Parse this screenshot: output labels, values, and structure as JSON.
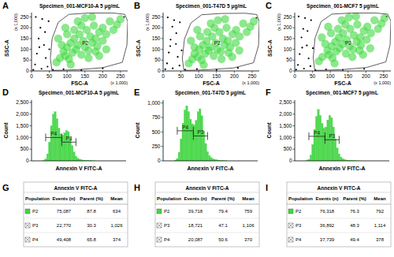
{
  "chart_data": [
    {
      "type": "scatter",
      "panel": "A",
      "title": "Specimen_001-MCF10-A 5 μg/mL",
      "xlabel": "FSC-A",
      "ylabel": "SSC-A",
      "x_unit": "(x 1,000)",
      "y_unit": "(x 1,000)",
      "xlim": [
        0,
        270
      ],
      "ylim": [
        0,
        270
      ],
      "xticks": [
        0,
        50,
        100,
        150,
        200,
        250
      ],
      "yticks": [
        0,
        50,
        100,
        150,
        200,
        250
      ],
      "grid": false,
      "series": [
        {
          "color": "#000000",
          "marker": "dot",
          "x": [
            5,
            10,
            15,
            20,
            25,
            30,
            35,
            40,
            45,
            12,
            28,
            38,
            50,
            60,
            90,
            140,
            200,
            260,
            48,
            22
          ],
          "values": [
            5,
            30,
            80,
            150,
            200,
            240,
            120,
            60,
            20,
            250,
            10,
            180,
            100,
            5,
            8,
            4,
            12,
            250,
            230,
            110
          ]
        },
        {
          "color": "#3fd83f",
          "marker": "circle",
          "x": [
            70,
            80,
            90,
            95,
            100,
            105,
            110,
            115,
            120,
            125,
            130,
            135,
            140,
            145,
            150,
            155,
            160,
            165,
            170,
            175,
            180,
            185,
            190,
            200,
            210,
            220,
            230,
            240,
            250,
            85,
            100,
            120,
            140,
            160,
            180,
            200,
            130,
            150,
            170,
            110,
            190,
            210,
            75,
            95
          ],
          "values": [
            40,
            60,
            90,
            70,
            110,
            55,
            130,
            85,
            150,
            100,
            120,
            170,
            75,
            140,
            110,
            190,
            95,
            160,
            130,
            210,
            150,
            115,
            180,
            200,
            170,
            230,
            190,
            215,
            240,
            120,
            170,
            190,
            210,
            60,
            90,
            140,
            230,
            245,
            250,
            30,
            70,
            100,
            150,
            200
          ]
        }
      ],
      "gate": {
        "name": "P2",
        "x": [
          57,
          53,
          58,
          75,
          105,
          160,
          230,
          262,
          270,
          268,
          255,
          200,
          130,
          80,
          62
        ],
        "y": [
          4,
          60,
          150,
          225,
          262,
          268,
          268,
          262,
          230,
          120,
          40,
          15,
          6,
          3,
          3
        ]
      }
    },
    {
      "type": "scatter",
      "panel": "B",
      "title": "Specimen_001-T47D 5 μg/mL",
      "xlabel": "FSC-A",
      "ylabel": "SSC-A",
      "x_unit": "(x 1,000)",
      "y_unit": "(x 1,000)",
      "xlim": [
        0,
        270
      ],
      "ylim": [
        0,
        270
      ],
      "xticks": [
        0,
        50,
        100,
        150,
        200,
        250
      ],
      "yticks": [
        0,
        50,
        100,
        150,
        200,
        250
      ],
      "grid": false,
      "series": [
        {
          "color": "#000000",
          "marker": "dot",
          "x": [
            6,
            11,
            16,
            21,
            26,
            31,
            36,
            41,
            46,
            13,
            27,
            37,
            52,
            62,
            95,
            150,
            210,
            262,
            47,
            20
          ],
          "values": [
            8,
            35,
            85,
            145,
            205,
            235,
            125,
            65,
            25,
            248,
            12,
            175,
            95,
            6,
            9,
            5,
            14,
            245,
            225,
            115
          ]
        },
        {
          "color": "#3fd83f",
          "marker": "circle",
          "x": [
            72,
            82,
            88,
            98,
            102,
            108,
            112,
            118,
            122,
            128,
            132,
            138,
            142,
            148,
            152,
            158,
            162,
            168,
            172,
            178,
            182,
            188,
            195,
            205,
            215,
            225,
            235,
            245,
            255,
            88,
            104,
            124,
            144,
            164,
            184,
            204,
            134,
            154,
            174,
            114,
            194,
            214,
            78,
            96
          ],
          "values": [
            35,
            55,
            80,
            65,
            100,
            50,
            120,
            80,
            140,
            95,
            110,
            160,
            70,
            130,
            100,
            180,
            90,
            150,
            120,
            200,
            140,
            110,
            170,
            190,
            160,
            220,
            180,
            205,
            230,
            110,
            160,
            180,
            200,
            55,
            85,
            130,
            220,
            235,
            240,
            28,
            65,
            95,
            140,
            190
          ]
        }
      ],
      "gate": {
        "name": "P2",
        "x": [
          58,
          54,
          60,
          78,
          108,
          162,
          232,
          263,
          270,
          268,
          254,
          198,
          128,
          82,
          63
        ],
        "y": [
          4,
          58,
          148,
          222,
          260,
          266,
          267,
          261,
          228,
          118,
          38,
          14,
          6,
          3,
          3
        ]
      }
    },
    {
      "type": "scatter",
      "panel": "C",
      "title": "Specimen_001-MCF7 5 μg/mL",
      "xlabel": "FSC-A",
      "ylabel": "SSC-A",
      "x_unit": "(x 1,000)",
      "y_unit": "(x 1,000)",
      "xlim": [
        0,
        270
      ],
      "ylim": [
        0,
        270
      ],
      "xticks": [
        0,
        50,
        100,
        150,
        200,
        250
      ],
      "yticks": [
        0,
        50,
        100,
        150,
        200,
        250
      ],
      "grid": false,
      "series": [
        {
          "color": "#000000",
          "marker": "dot",
          "x": [
            4,
            9,
            14,
            19,
            24,
            29,
            34,
            39,
            44,
            11,
            26,
            36,
            51,
            58,
            88,
            135,
            195,
            258,
            46,
            21
          ],
          "values": [
            6,
            28,
            78,
            155,
            195,
            245,
            118,
            58,
            22,
            252,
            11,
            185,
            105,
            4,
            7,
            5,
            10,
            252,
            235,
            108
          ]
        },
        {
          "color": "#3fd83f",
          "marker": "circle",
          "x": [
            68,
            78,
            92,
            96,
            104,
            106,
            114,
            116,
            124,
            126,
            134,
            136,
            144,
            146,
            154,
            156,
            164,
            166,
            174,
            176,
            184,
            186,
            194,
            204,
            214,
            224,
            234,
            244,
            252,
            86,
            102,
            122,
            142,
            162,
            182,
            202,
            132,
            152,
            172,
            112,
            192,
            212,
            76,
            94
          ],
          "values": [
            45,
            65,
            95,
            75,
            115,
            60,
            135,
            90,
            155,
            105,
            125,
            175,
            80,
            145,
            115,
            195,
            100,
            165,
            135,
            215,
            155,
            120,
            185,
            205,
            175,
            235,
            195,
            220,
            245,
            125,
            175,
            195,
            215,
            65,
            95,
            145,
            235,
            248,
            252,
            35,
            75,
            105,
            155,
            205
          ]
        }
      ],
      "gate": {
        "name": "P2",
        "x": [
          56,
          52,
          57,
          74,
          104,
          158,
          228,
          261,
          270,
          268,
          256,
          202,
          132,
          79,
          61
        ],
        "y": [
          4,
          62,
          152,
          228,
          263,
          268,
          268,
          263,
          232,
          122,
          42,
          16,
          6,
          3,
          3
        ]
      }
    },
    {
      "type": "histogram",
      "panel": "D",
      "title": "Specimen_001-MCF10-A 5 μg/mL",
      "xlabel": "Annexin V FITC-A",
      "ylabel": "Count",
      "log": "x",
      "tick_labels": "y",
      "color": "#4fd84f",
      "xlim": [
        10,
        1000000
      ],
      "ylim": [
        0,
        2600
      ],
      "yticks": [
        0,
        500,
        {
          "value": 1000,
          "label": "1,000"
        },
        {
          "value": 1500,
          "label": "1,500"
        },
        {
          "value": 2000,
          "label": "2,000"
        },
        {
          "value": 2500,
          "label": "2,500"
        }
      ],
      "bins": [
        40,
        50,
        63,
        79,
        100,
        126,
        158,
        200,
        251,
        316,
        398,
        501,
        631,
        794,
        1000,
        1259,
        1585,
        1995,
        2512,
        3162,
        3981,
        5012,
        6310,
        7943,
        10000,
        12589,
        15849,
        19953,
        25119
      ],
      "values": [
        20,
        80,
        300,
        800,
        1500,
        2000,
        2100,
        1800,
        1400,
        1150,
        1100,
        1200,
        1300,
        1250,
        1000,
        650,
        380,
        200,
        110,
        70,
        45,
        30,
        22,
        15,
        10,
        7,
        5,
        3
      ],
      "gates": [
        {
          "name": "P4",
          "range": [
            56,
            398
          ],
          "level": 1000
        },
        {
          "name": "P3",
          "range": [
            398,
            2239
          ],
          "level": 800
        }
      ]
    },
    {
      "type": "histogram",
      "panel": "E",
      "title": "Specimen_001-T47D 5 μg/mL",
      "xlabel": "Annexin V FITC-A",
      "ylabel": "Count",
      "log": "x",
      "tick_labels": "y",
      "color": "#4fd84f",
      "xlim": [
        10,
        1000000
      ],
      "ylim": [
        0,
        1050
      ],
      "yticks": [
        0,
        250,
        500,
        750,
        {
          "value": 1000,
          "label": "1,000"
        }
      ],
      "bins": [
        40,
        50,
        63,
        79,
        100,
        126,
        158,
        200,
        251,
        316,
        398,
        501,
        631,
        794,
        1000,
        1259,
        1585,
        1995,
        2512,
        3162,
        3981,
        5012,
        6310,
        7943,
        10000,
        12589,
        15849,
        19953,
        25119
      ],
      "values": [
        10,
        40,
        150,
        380,
        650,
        880,
        950,
        850,
        720,
        640,
        620,
        700,
        850,
        900,
        780,
        520,
        300,
        160,
        90,
        55,
        35,
        24,
        16,
        11,
        8,
        5,
        3,
        2
      ],
      "gates": [
        {
          "name": "P4",
          "range": [
            56,
            398
          ],
          "level": 520
        },
        {
          "name": "P3",
          "range": [
            398,
            2239
          ],
          "level": 430
        }
      ]
    },
    {
      "type": "histogram",
      "panel": "F",
      "title": "Specimen_001-MCF7 5 μg/mL",
      "xlabel": "Annexin V FITC-A",
      "ylabel": "Count",
      "log": "x",
      "tick_labels": "y",
      "color": "#4fd84f",
      "xlim": [
        10,
        1000000
      ],
      "ylim": [
        0,
        2600
      ],
      "yticks": [
        0,
        500,
        {
          "value": 1000,
          "label": "1,000"
        },
        {
          "value": 1500,
          "label": "1,500"
        },
        {
          "value": 2000,
          "label": "2,000"
        },
        {
          "value": 2500,
          "label": "2,500"
        }
      ],
      "bins": [
        40,
        50,
        63,
        79,
        100,
        126,
        158,
        200,
        251,
        316,
        398,
        501,
        631,
        794,
        1000,
        1259,
        1585,
        1995,
        2512,
        3162,
        3981,
        5012,
        6310,
        7943,
        10000,
        12589,
        15849,
        19953,
        25119
      ],
      "values": [
        15,
        60,
        250,
        700,
        1350,
        1900,
        2200,
        1950,
        1600,
        1400,
        1450,
        1750,
        1950,
        1850,
        1450,
        950,
        550,
        300,
        160,
        90,
        55,
        35,
        24,
        16,
        11,
        7,
        5,
        3
      ],
      "gates": [
        {
          "name": "P4",
          "range": [
            56,
            398
          ],
          "level": 1050
        },
        {
          "name": "P3",
          "range": [
            398,
            2239
          ],
          "level": 900
        }
      ]
    },
    {
      "type": "table",
      "panel": "G",
      "title": "Annexin V FITC-A",
      "columns": [
        "Population",
        "Events (n)",
        "Parent (%)",
        "Mean"
      ],
      "rows": [
        [
          "P2",
          "75,087",
          "87.8",
          "634"
        ],
        [
          "P3",
          "22,770",
          "30.3",
          "1,026"
        ],
        [
          "P4",
          "49,408",
          "65.8",
          "374"
        ]
      ],
      "colors": [
        "#3fd83f",
        null,
        null
      ]
    },
    {
      "type": "table",
      "panel": "H",
      "title": "Annexin V FITC-A",
      "columns": [
        "Population",
        "Events (n)",
        "Parent (%)",
        "Mean"
      ],
      "rows": [
        [
          "P2",
          "39,718",
          "79.4",
          "759"
        ],
        [
          "P3",
          "18,721",
          "47.1",
          "1,106"
        ],
        [
          "P4",
          "20,087",
          "50.6",
          "370"
        ]
      ],
      "colors": [
        "#3fd83f",
        null,
        null
      ]
    },
    {
      "type": "table",
      "panel": "I",
      "title": "Annexin V FITC-A",
      "columns": [
        "Population",
        "Events (n)",
        "Parent (%)",
        "Mean"
      ],
      "rows": [
        [
          "P2",
          "76,318",
          "76.3",
          "792"
        ],
        [
          "P3",
          "36,892",
          "48.3",
          "1,114"
        ],
        [
          "P4",
          "37,739",
          "49.4",
          "378"
        ]
      ],
      "colors": [
        "#3fd83f",
        null,
        null
      ]
    }
  ]
}
